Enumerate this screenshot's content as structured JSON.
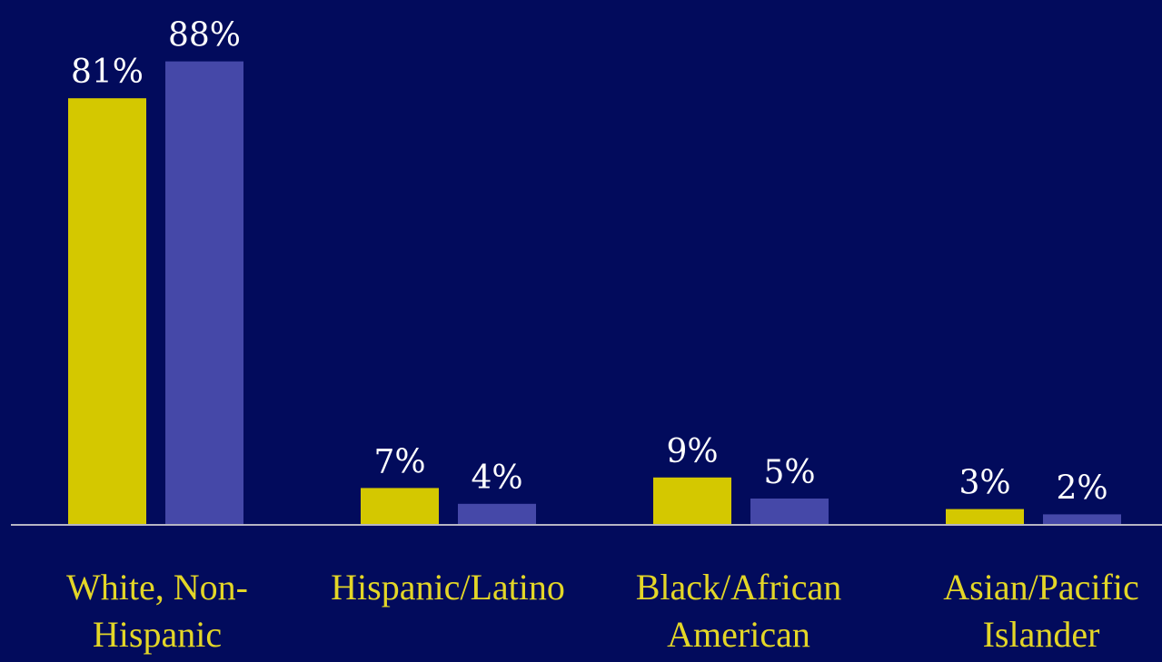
{
  "chart_data": {
    "type": "bar",
    "categories": [
      [
        "White, Non-",
        "Hispanic"
      ],
      [
        "Hispanic/Latino"
      ],
      [
        "Black/African",
        "American"
      ],
      [
        "Asian/Pacific",
        "Islander"
      ]
    ],
    "series": [
      {
        "values": [
          81,
          7,
          9,
          3
        ],
        "labels": [
          "81%",
          "7%",
          "9%",
          "3%"
        ],
        "color": "#d4c800"
      },
      {
        "values": [
          88,
          4,
          5,
          2
        ],
        "labels": [
          "88%",
          "4%",
          "5%",
          "2%"
        ],
        "color": "#4548a8"
      }
    ],
    "ylim": [
      0,
      100
    ],
    "grid": false,
    "legend": "none",
    "colors": {
      "background": "#020b5c",
      "baseline": "#b6b6c4",
      "value_label": "#ffffff",
      "category_label": "#e3d627"
    }
  }
}
